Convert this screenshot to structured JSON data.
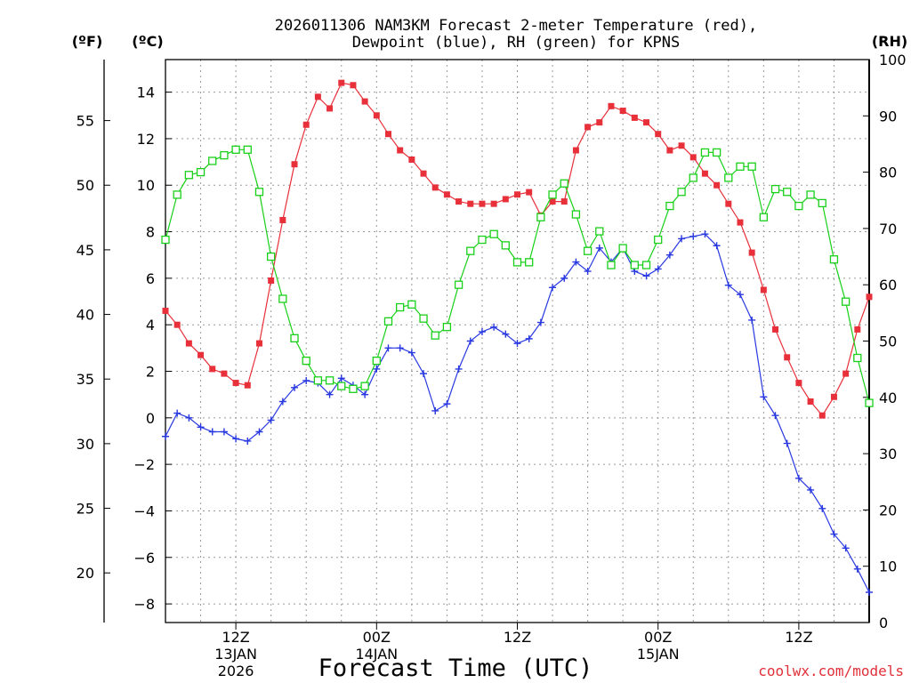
{
  "chart_data": {
    "type": "line",
    "title_line1": "2026011306 NAM3KM Forecast 2-meter Temperature (red),",
    "title_line2": "Dewpoint (blue), RH (green) for KPNS",
    "xlabel": "Forecast Time (UTC)",
    "credit": "coolwx.com/models",
    "units": {
      "fahrenheit": "(ºF)",
      "celsius": "(ºC)",
      "rh": "(RH)"
    },
    "x_range_hours": [
      0,
      60
    ],
    "x_ticks": [
      {
        "hour": 6,
        "label": "12Z",
        "sub1": "13JAN",
        "sub2": "2026"
      },
      {
        "hour": 18,
        "label": "00Z",
        "sub1": "14JAN",
        "sub2": ""
      },
      {
        "hour": 30,
        "label": "12Z",
        "sub1": "",
        "sub2": ""
      },
      {
        "hour": 42,
        "label": "00Z",
        "sub1": "15JAN",
        "sub2": ""
      },
      {
        "hour": 54,
        "label": "12Z",
        "sub1": "",
        "sub2": ""
      }
    ],
    "celsius_axis": {
      "min": -8.8,
      "max": 15.4,
      "ticks": [
        "14",
        "12",
        "10",
        "8",
        "6",
        "4",
        "2",
        "0",
        "−2",
        "−4",
        "−6",
        "−8"
      ],
      "tick_values": [
        14,
        12,
        10,
        8,
        6,
        4,
        2,
        0,
        -2,
        -4,
        -6,
        -8
      ]
    },
    "fahrenheit_axis": {
      "ticks": [
        "55",
        "50",
        "45",
        "40",
        "35",
        "30",
        "25",
        "20"
      ],
      "tick_values": [
        55,
        50,
        45,
        40,
        35,
        30,
        25,
        20
      ]
    },
    "rh_axis": {
      "min": 0,
      "max": 100,
      "ticks": [
        "100",
        "90",
        "80",
        "70",
        "60",
        "50",
        "40",
        "30",
        "20",
        "10",
        "0"
      ],
      "tick_values": [
        100,
        90,
        80,
        70,
        60,
        50,
        40,
        30,
        20,
        10,
        0
      ]
    },
    "series": [
      {
        "name": "2-meter Temperature (°C)",
        "color": "#e8303a",
        "marker": "filled-square",
        "values": [
          4.6,
          4.0,
          3.2,
          2.7,
          2.1,
          1.9,
          1.5,
          1.4,
          3.2,
          5.9,
          8.5,
          10.9,
          12.6,
          13.8,
          13.3,
          14.4,
          14.3,
          13.6,
          13.0,
          12.2,
          11.5,
          11.1,
          10.5,
          9.9,
          9.6,
          9.3,
          9.2,
          9.2,
          9.2,
          9.4,
          9.6,
          9.7,
          8.7,
          9.3,
          9.3,
          11.5,
          12.5,
          12.7,
          13.4,
          13.2,
          12.9,
          12.7,
          12.2,
          11.5,
          11.7,
          11.2,
          10.5,
          10.0,
          9.2,
          8.4,
          7.1,
          5.5,
          3.8,
          2.6,
          1.5,
          0.7,
          0.1,
          0.9,
          1.9,
          3.8,
          5.2
        ]
      },
      {
        "name": "Dewpoint (°C)",
        "color": "#2838e0",
        "marker": "plus",
        "values": [
          -0.8,
          0.2,
          0.0,
          -0.4,
          -0.6,
          -0.6,
          -0.9,
          -1.0,
          -0.6,
          -0.1,
          0.7,
          1.3,
          1.6,
          1.5,
          1.0,
          1.7,
          1.4,
          1.0,
          2.1,
          3.0,
          3.0,
          2.8,
          1.9,
          0.3,
          0.6,
          2.1,
          3.3,
          3.7,
          3.9,
          3.6,
          3.2,
          3.4,
          4.1,
          5.6,
          6.0,
          6.7,
          6.3,
          7.3,
          6.7,
          7.3,
          6.3,
          6.1,
          6.4,
          7.0,
          7.7,
          7.8,
          7.9,
          7.4,
          5.7,
          5.3,
          4.2,
          0.9,
          0.1,
          -1.1,
          -2.6,
          -3.1,
          -3.9,
          -5.0,
          -5.6,
          -6.5,
          -7.5
        ]
      },
      {
        "name": "Relative Humidity (%)",
        "color": "#18d018",
        "marker": "open-square",
        "axis": "rh",
        "values": [
          68,
          76,
          79.5,
          80,
          82,
          83,
          84,
          84,
          76.5,
          65,
          57.5,
          50.5,
          46.5,
          43,
          43,
          42,
          41.5,
          42,
          46.5,
          53.5,
          56,
          56.5,
          54,
          51,
          52.5,
          60,
          66,
          68,
          69,
          67,
          64,
          64,
          72,
          76,
          78,
          72.5,
          66,
          69.5,
          63.5,
          66.5,
          63.5,
          63.5,
          68,
          74,
          76.5,
          79,
          83.5,
          83.5,
          79,
          81,
          81,
          72,
          77,
          76.5,
          74,
          76,
          74.5,
          64.5,
          57,
          47,
          39
        ]
      }
    ]
  }
}
